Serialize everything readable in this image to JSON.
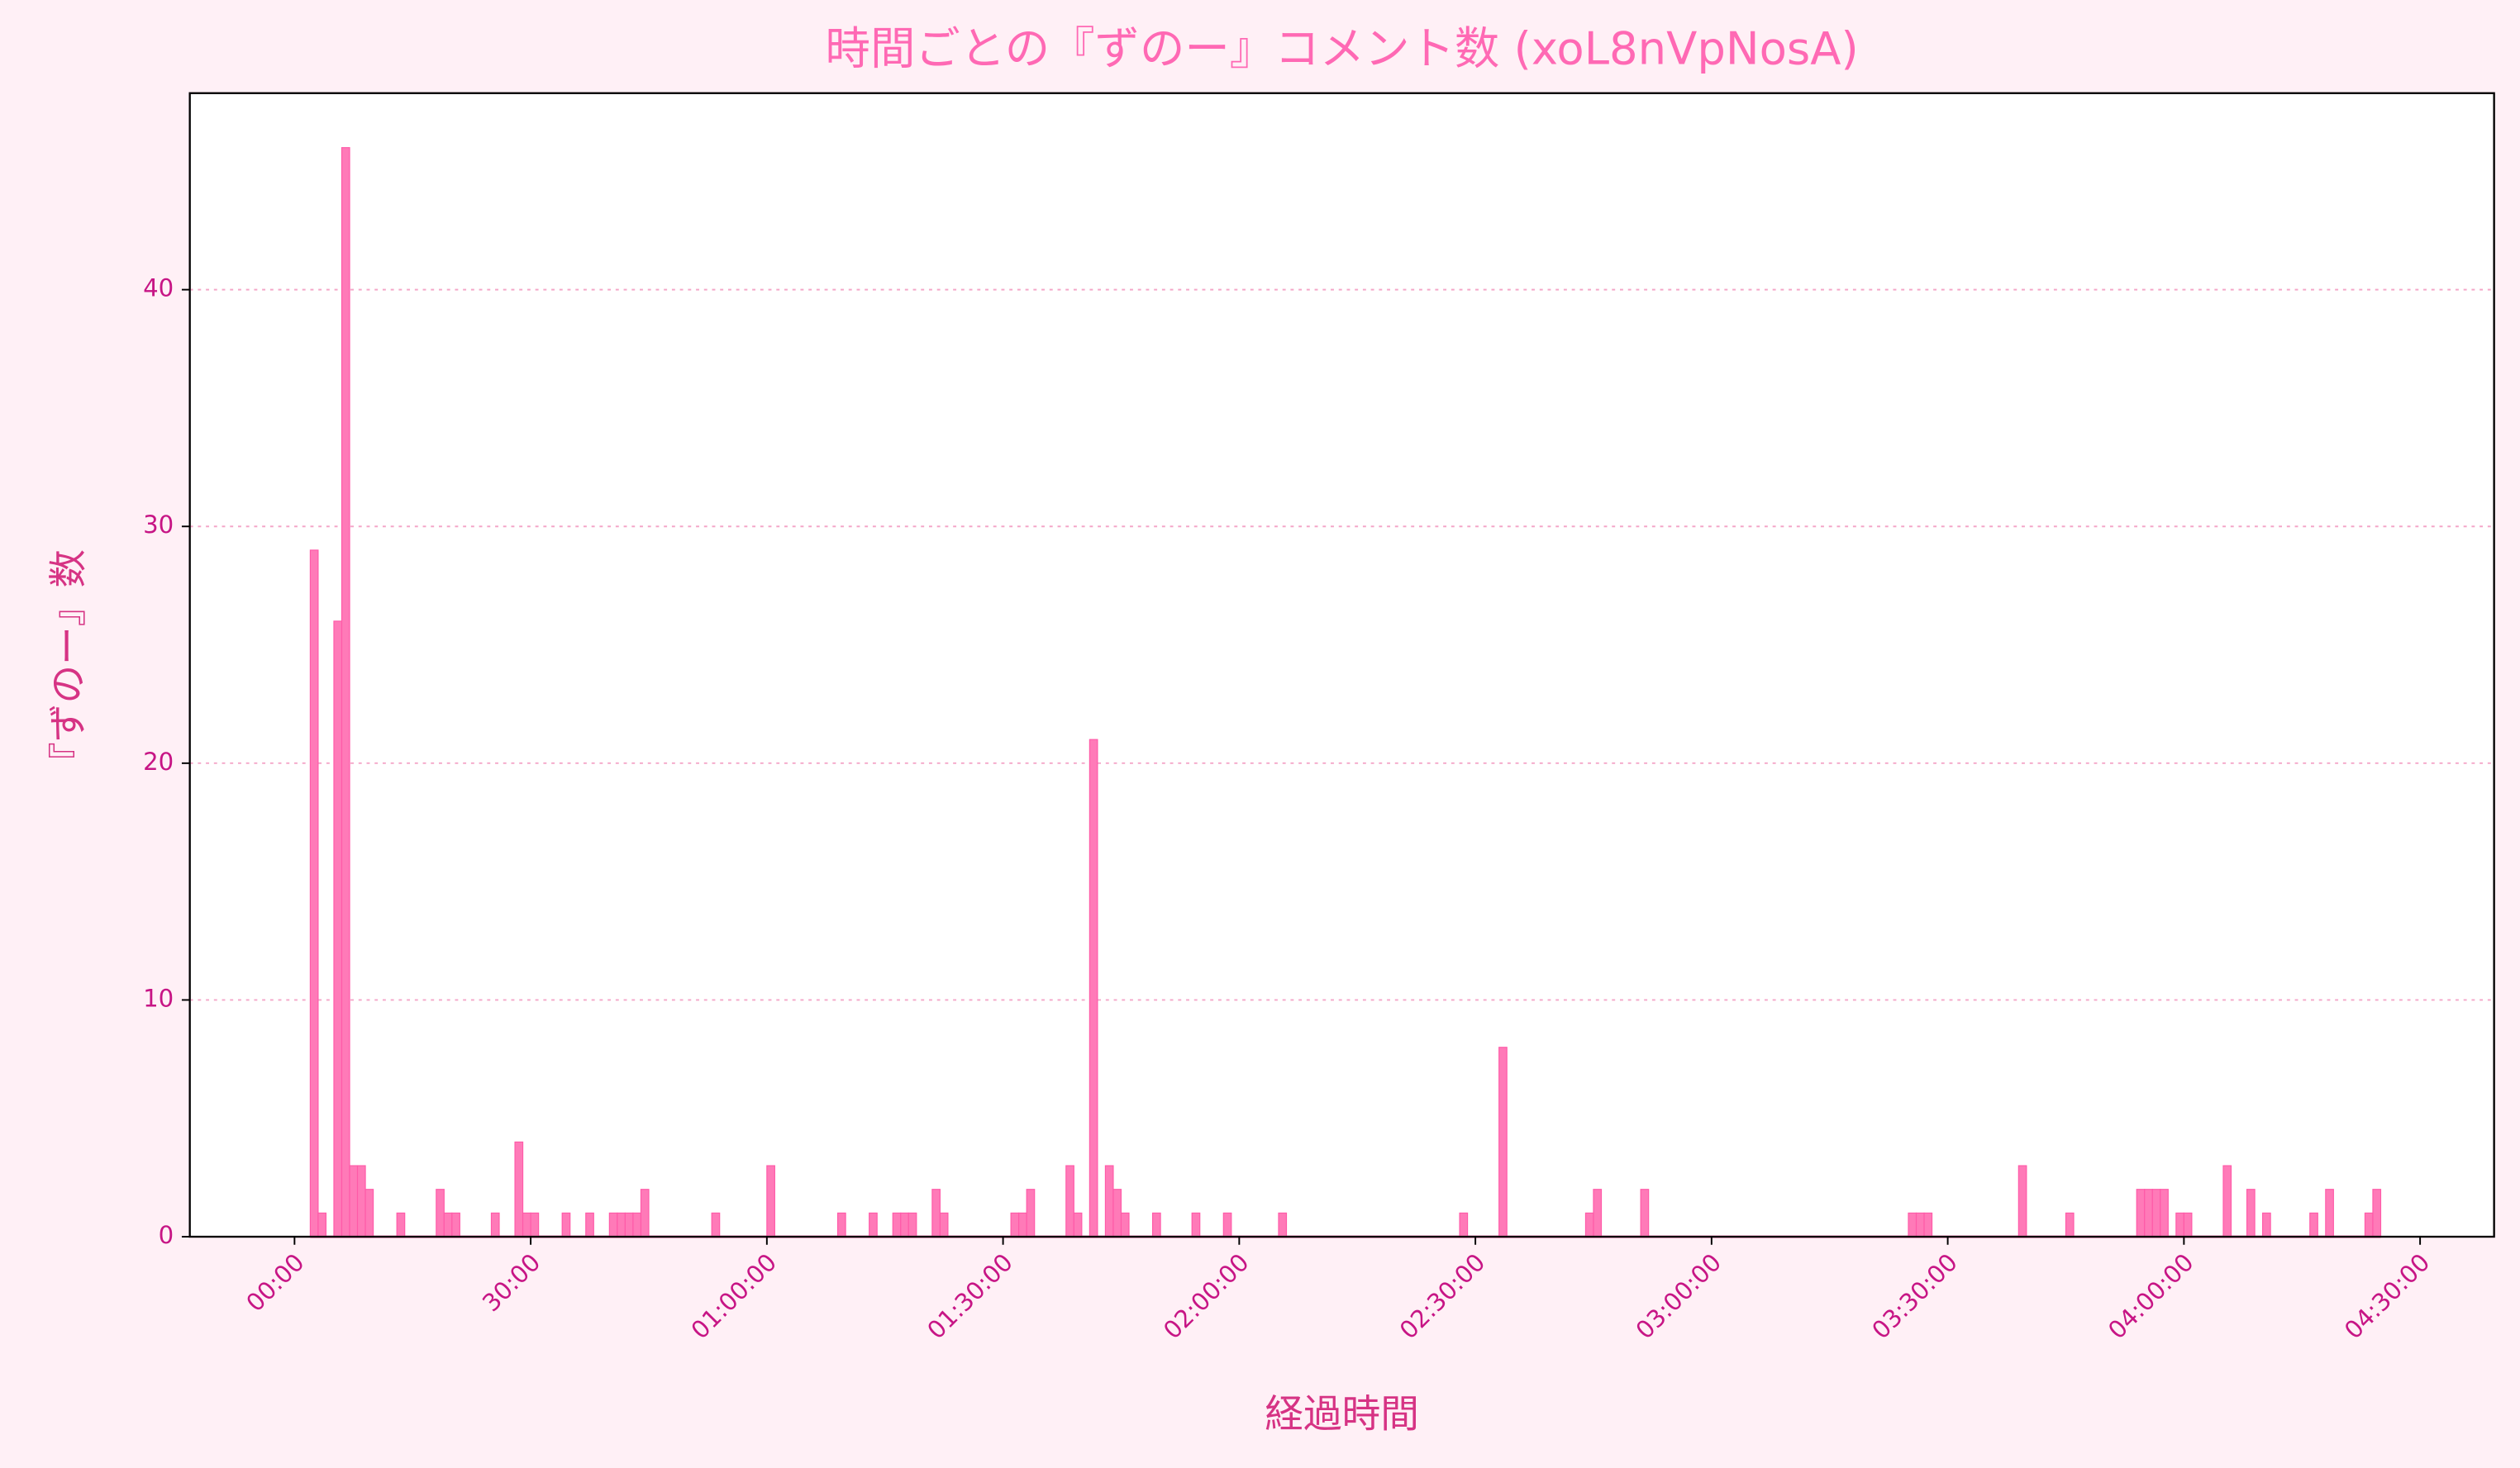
{
  "chart_data": {
    "type": "bar",
    "title": "時間ごとの『ずのー』コメント数 (xoL8nVpNosA)",
    "x_label": "経過時間",
    "y_label": "『ずのー』数",
    "color": "#ff7ab8",
    "edge_color": "#ff5aa8",
    "x": [
      2,
      3,
      5,
      6,
      7,
      8,
      9,
      13,
      18,
      19,
      20,
      25,
      28,
      29,
      30,
      34,
      37,
      40,
      41,
      42,
      43,
      44,
      53,
      60,
      69,
      73,
      76,
      77,
      78,
      81,
      82,
      91,
      92,
      93,
      98,
      99,
      101,
      103,
      104,
      105,
      109,
      114,
      118,
      125,
      148,
      153,
      164,
      165,
      171,
      205,
      206,
      207,
      219,
      225,
      234,
      235,
      236,
      237,
      239,
      240,
      245,
      248,
      250,
      256,
      258,
      263,
      264
    ],
    "values": [
      29,
      1,
      26,
      46,
      3,
      3,
      2,
      1,
      2,
      1,
      1,
      1,
      4,
      1,
      1,
      1,
      1,
      1,
      1,
      1,
      1,
      2,
      1,
      3,
      1,
      1,
      1,
      1,
      1,
      2,
      1,
      1,
      1,
      2,
      3,
      1,
      21,
      3,
      2,
      1,
      1,
      1,
      1,
      1,
      1,
      8,
      1,
      2,
      2,
      1,
      1,
      1,
      3,
      1,
      2,
      2,
      2,
      2,
      1,
      1,
      3,
      2,
      1,
      1,
      2,
      1,
      2
    ],
    "xlim": [
      -13.3,
      279.4
    ],
    "ylim": [
      0,
      48.3
    ],
    "xticks": [
      {
        "value": 0,
        "label": "00:00"
      },
      {
        "value": 30,
        "label": "30:00"
      },
      {
        "value": 60,
        "label": "01:00:00"
      },
      {
        "value": 90,
        "label": "01:30:00"
      },
      {
        "value": 120,
        "label": "02:00:00"
      },
      {
        "value": 150,
        "label": "02:30:00"
      },
      {
        "value": 180,
        "label": "03:00:00"
      },
      {
        "value": 210,
        "label": "03:30:00"
      },
      {
        "value": 240,
        "label": "04:00:00"
      },
      {
        "value": 270,
        "label": "04:30:00"
      }
    ],
    "yticks": [
      0,
      10,
      20,
      30,
      40
    ],
    "grid": true
  }
}
